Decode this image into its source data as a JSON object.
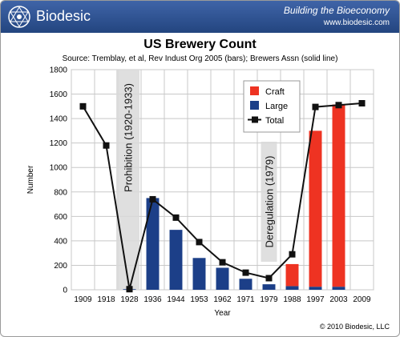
{
  "header": {
    "brand": "Biodesic",
    "tagline": "Building the Bioeconomy",
    "url": "www.biodesic.com"
  },
  "footer": {
    "copyright": "© 2010 Biodesic, LLC"
  },
  "colors": {
    "craft": "#ee3322",
    "large": "#1c3f88",
    "total": "#111111",
    "banner": "#2d508f",
    "annotation": "#d9d9d9"
  },
  "chart_data": {
    "type": "bar",
    "title": "US Brewery Count",
    "subtitle": "Source: Tremblay, et al, Rev Indust Org 2005 (bars); Brewers Assn (solid line)",
    "xlabel": "Year",
    "ylabel": "Number",
    "ylim": [
      0,
      1800
    ],
    "yticks": [
      0,
      200,
      400,
      600,
      800,
      1000,
      1200,
      1400,
      1600,
      1800
    ],
    "grid": true,
    "legend_position": "top-right",
    "categories": [
      "1909",
      "1918",
      "1928",
      "1936",
      "1944",
      "1953",
      "1962",
      "1971",
      "1979",
      "1988",
      "1997",
      "2003",
      "2009"
    ],
    "series": [
      {
        "name": "Craft",
        "kind": "stacked-bar",
        "values": [
          0,
          0,
          0,
          0,
          0,
          0,
          0,
          0,
          0,
          180,
          1275,
          1490,
          0
        ]
      },
      {
        "name": "Large",
        "kind": "stacked-bar",
        "values": [
          0,
          0,
          5,
          750,
          490,
          260,
          180,
          90,
          45,
          30,
          25,
          25,
          0
        ]
      },
      {
        "name": "Total",
        "kind": "line",
        "values": [
          1500,
          1180,
          5,
          740,
          590,
          390,
          225,
          140,
          95,
          290,
          1495,
          1510,
          1525
        ]
      }
    ],
    "annotations": [
      {
        "label": "Prohibition (1920-1933)",
        "from_category": "1918",
        "to_category": "1928"
      },
      {
        "label": "Deregulation (1979)",
        "category": "1979"
      }
    ]
  }
}
